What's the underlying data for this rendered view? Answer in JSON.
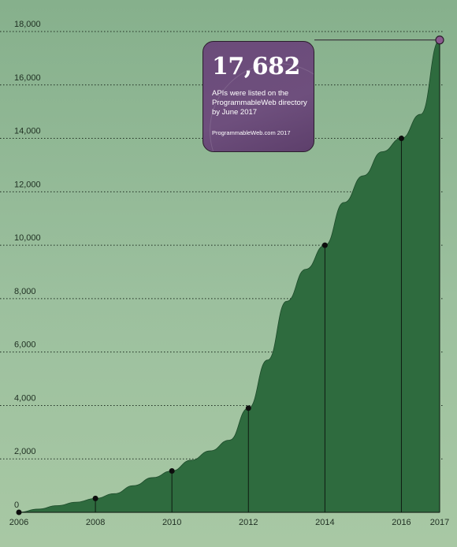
{
  "chart_data": {
    "type": "area",
    "x": [
      2006,
      2006.5,
      2007,
      2007.5,
      2008,
      2008.5,
      2009,
      2009.5,
      2010,
      2010.5,
      2011,
      2011.5,
      2012,
      2012.5,
      2013,
      2013.5,
      2014,
      2014.5,
      2015,
      2015.5,
      2016,
      2016.5,
      2017
    ],
    "y": [
      0,
      120,
      250,
      380,
      520,
      700,
      1000,
      1300,
      1550,
      1950,
      2300,
      2700,
      3900,
      5700,
      7900,
      9100,
      10000,
      11600,
      12600,
      13500,
      14000,
      14900,
      17682
    ],
    "highlight_points": [
      {
        "x": 2006,
        "y": 0
      },
      {
        "x": 2008,
        "y": 520
      },
      {
        "x": 2010,
        "y": 1550
      },
      {
        "x": 2012,
        "y": 3900
      },
      {
        "x": 2014,
        "y": 10000
      },
      {
        "x": 2016,
        "y": 14000
      },
      {
        "x": 2017,
        "y": 17682
      }
    ],
    "x_ticks": [
      "2006",
      "2008",
      "2010",
      "2012",
      "2014",
      "2016",
      "2017"
    ],
    "x_tick_values": [
      2006,
      2008,
      2010,
      2012,
      2014,
      2016,
      2017
    ],
    "y_ticks": [
      "0",
      "2,000",
      "4,000",
      "6,000",
      "8,000",
      "10,000",
      "12,000",
      "14,000",
      "16,000",
      "18,000"
    ],
    "y_tick_values": [
      0,
      2000,
      4000,
      6000,
      8000,
      10000,
      12000,
      14000,
      16000,
      18000
    ],
    "xlim": [
      2006,
      2017
    ],
    "ylim": [
      0,
      18000
    ],
    "grid": "horizontal-dotted",
    "title": "",
    "xlabel": "",
    "ylabel": "",
    "colors": {
      "area": "#2e6b3e",
      "final_point": "#8a5a8e",
      "callout": "#6b4b7a"
    }
  },
  "callout": {
    "number": "17,682",
    "text": "APIs were listed on the ProgrammableWeb directory by June 2017",
    "source": "ProgrammableWeb.com 2017"
  }
}
